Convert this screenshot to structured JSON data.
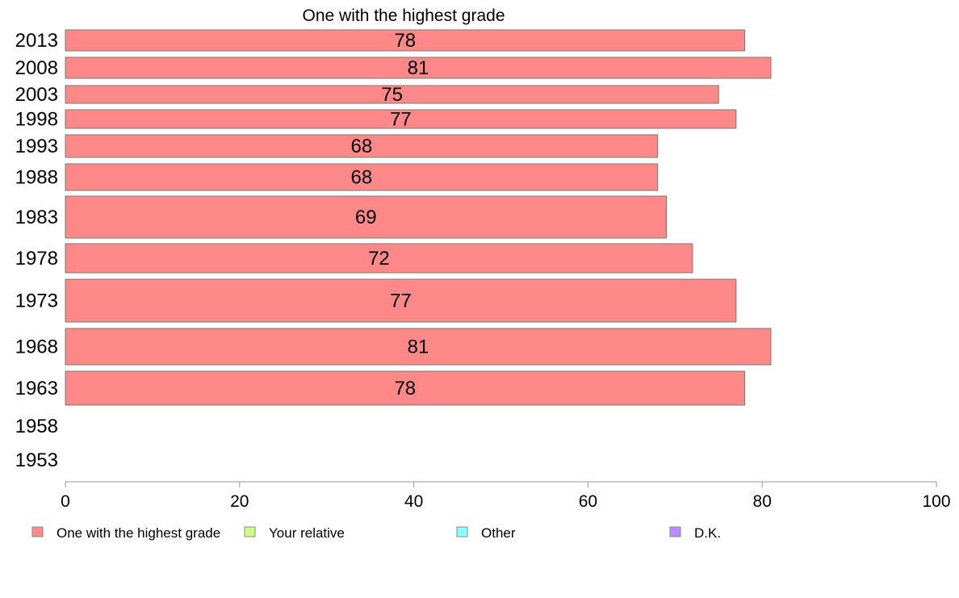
{
  "chart_data": {
    "type": "bar",
    "orientation": "horizontal",
    "title": "One with the highest grade",
    "categories": [
      "2013",
      "2008",
      "2003",
      "1998",
      "1993",
      "1988",
      "1983",
      "1978",
      "1973",
      "1968",
      "1963",
      "1958",
      "1953"
    ],
    "series": [
      {
        "name": "One with the highest grade",
        "color": "#ff8888",
        "values": [
          78,
          81,
          75,
          77,
          68,
          68,
          69,
          72,
          77,
          81,
          78,
          null,
          null
        ],
        "labels": [
          "78",
          "81",
          "75",
          "77",
          "68",
          "68",
          "69",
          "72",
          "77",
          "81",
          "78",
          "",
          ""
        ]
      }
    ],
    "xlim": [
      0,
      100
    ],
    "xticks": [
      "0",
      "20",
      "40",
      "60",
      "80",
      "100"
    ],
    "grid": false,
    "legend": {
      "placement": "bottom",
      "items": [
        {
          "label": "One with the highest grade",
          "color": "#ff8888"
        },
        {
          "label": "Your relative",
          "color": "#ccff88"
        },
        {
          "label": "Other",
          "color": "#88ffff"
        },
        {
          "label": "D.K.",
          "color": "#bb88ff"
        }
      ]
    }
  }
}
